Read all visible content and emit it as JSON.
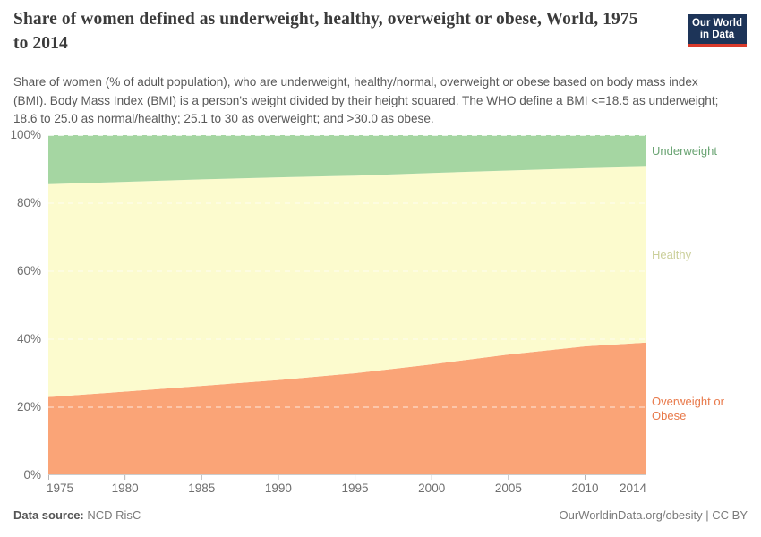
{
  "header": {
    "title": "Share of women defined as underweight, healthy, overweight or obese, World, 1975 to 2014",
    "subtitle": "Share of women (% of adult population), who are underweight, healthy/normal, overweight or obese based on body mass index (BMI). Body Mass Index (BMI) is a person's weight divided by their height squared. The WHO define a BMI <=18.5 as underweight; 18.6 to 25.0 as normal/healthy; 25.1 to 30 as overweight; and >30.0 as obese.",
    "logo": {
      "line1": "Our World",
      "line2": "in Data",
      "background_color": "#1d3458",
      "stripe_color": "#d93a2b"
    }
  },
  "chart_data": {
    "type": "area",
    "stacked": true,
    "title": "Share of women defined as underweight, healthy, overweight or obese, World, 1975 to 2014",
    "xlabel": "",
    "ylabel": "",
    "x": [
      1975,
      1980,
      1985,
      1990,
      1995,
      2000,
      2005,
      2010,
      2014
    ],
    "series": [
      {
        "name": "Overweight or Obese",
        "area_color": "#faa477",
        "label_color": "#e8794a",
        "values": [
          23.0,
          24.6,
          26.3,
          28.0,
          30.0,
          32.6,
          35.5,
          37.9,
          39.0
        ]
      },
      {
        "name": "Healthy",
        "area_color": "#fcfbce",
        "label_color": "#cbcf9a",
        "values": [
          62.6,
          61.7,
          60.7,
          59.6,
          58.1,
          56.3,
          54.1,
          52.4,
          51.7
        ]
      },
      {
        "name": "Underweight",
        "area_color": "#a5d6a2",
        "label_color": "#6aa473",
        "values": [
          14.4,
          13.7,
          13.0,
          12.4,
          11.9,
          11.1,
          10.4,
          9.7,
          9.3
        ]
      }
    ],
    "ylim": [
      0,
      100
    ],
    "yticks": [
      0,
      20,
      40,
      60,
      80,
      100
    ],
    "ytick_suffix": "%",
    "xticks": [
      1975,
      1980,
      1985,
      1990,
      1995,
      2000,
      2005,
      2010,
      2014
    ],
    "grid": "dashed horizontal lines inside plot",
    "legend_position": "labels right of plot"
  },
  "footer": {
    "source_label": "Data source:",
    "source_value": "NCD RisC",
    "license": "OurWorldinData.org/obesity | CC BY"
  }
}
